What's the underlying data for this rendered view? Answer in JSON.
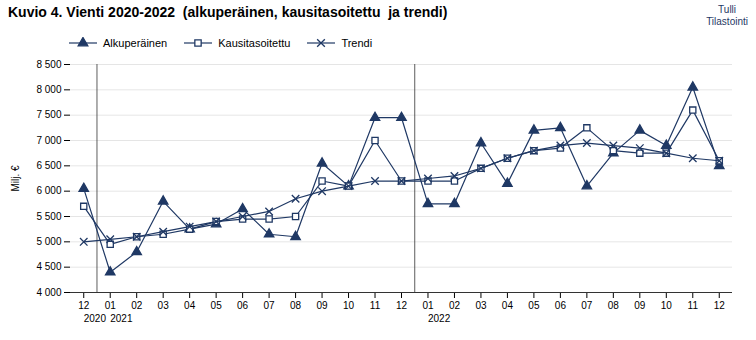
{
  "chart_data": {
    "type": "line",
    "title": "Kuvio 4. Vienti 2020-2022  (alkuperäinen, kausitasoitettu  ja trendi)",
    "ylabel": "Milj. €",
    "categories": [
      "12",
      "01",
      "02",
      "03",
      "04",
      "05",
      "06",
      "07",
      "08",
      "09",
      "10",
      "11",
      "12",
      "01",
      "02",
      "03",
      "04",
      "05",
      "06",
      "07",
      "08",
      "09",
      "10",
      "11",
      "12"
    ],
    "series": [
      {
        "name": "Alkuperäinen",
        "marker": "triangle",
        "values": [
          6050,
          4400,
          4800,
          5800,
          5250,
          5350,
          5650,
          5150,
          5100,
          6550,
          6100,
          7450,
          7450,
          5750,
          5750,
          6950,
          6150,
          7200,
          7250,
          6100,
          6750,
          7200,
          6900,
          8050,
          6500
        ]
      },
      {
        "name": "Kausitasoitettu",
        "marker": "square",
        "values": [
          5700,
          4950,
          5100,
          5150,
          5250,
          5400,
          5450,
          5450,
          5500,
          6200,
          6100,
          7000,
          6200,
          6200,
          6200,
          6450,
          6650,
          6800,
          6850,
          7250,
          6800,
          6750,
          6750,
          7600,
          6600
        ]
      },
      {
        "name": "Trendi",
        "marker": "x",
        "values": [
          5000,
          5050,
          5100,
          5200,
          5300,
          5400,
          5500,
          5600,
          5850,
          6000,
          6100,
          6200,
          6200,
          6250,
          6300,
          6450,
          6650,
          6800,
          6900,
          6950,
          6900,
          6850,
          6750,
          6650,
          6600
        ]
      }
    ],
    "color": "#1F3864",
    "ylim": [
      4000,
      8500
    ],
    "yticks": [
      {
        "value": 4000,
        "label": "4 000"
      },
      {
        "value": 4500,
        "label": "4 500"
      },
      {
        "value": 5000,
        "label": "5 000"
      },
      {
        "value": 5500,
        "label": "5 500"
      },
      {
        "value": 6000,
        "label": "6 000"
      },
      {
        "value": 6500,
        "label": "6 500"
      },
      {
        "value": 7000,
        "label": "7 000"
      },
      {
        "value": 7500,
        "label": "7 500"
      },
      {
        "value": 8000,
        "label": "8 000"
      },
      {
        "value": 8500,
        "label": "8 500"
      }
    ],
    "grid": true,
    "legend": "top",
    "annotations": [
      {
        "text": "Tulli\nTilastointi"
      },
      {
        "text": "2020",
        "x": 0
      },
      {
        "text": "2021",
        "x": 1
      },
      {
        "text": "2022",
        "x": 13
      }
    ]
  }
}
